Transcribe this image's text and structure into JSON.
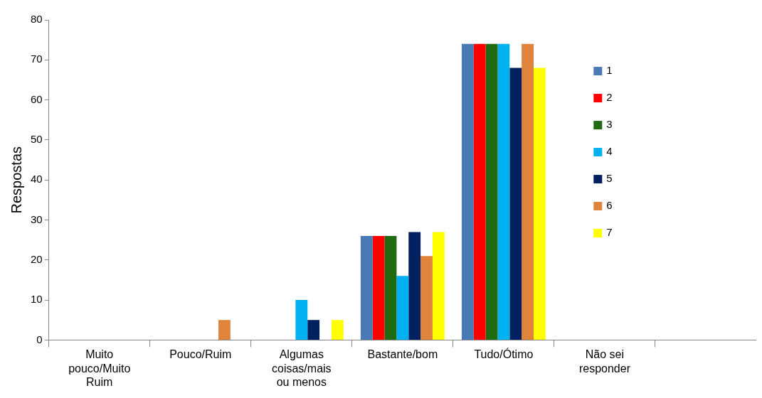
{
  "chart_data": {
    "type": "bar",
    "ylabel": "Respostas",
    "categories": [
      "Muito pouco/Muito Ruim",
      "Pouco/Ruim",
      "Algumas coisas/mais ou menos",
      "Bastante/bom",
      "Tudo/Ótimo",
      "Não sei responder",
      null
    ],
    "series": [
      {
        "name": "1",
        "color": "#4a7ab5",
        "values": [
          0,
          0,
          0,
          26,
          74,
          0,
          null
        ]
      },
      {
        "name": "2",
        "color": "#ff0000",
        "values": [
          0,
          0,
          0,
          26,
          74,
          0,
          null
        ]
      },
      {
        "name": "3",
        "color": "#1e6b12",
        "values": [
          0,
          0,
          0,
          26,
          74,
          0,
          null
        ]
      },
      {
        "name": "4",
        "color": "#00b0f0",
        "values": [
          0,
          0,
          10,
          16,
          74,
          0,
          null
        ]
      },
      {
        "name": "5",
        "color": "#002060",
        "values": [
          0,
          0,
          5,
          27,
          68,
          0,
          null
        ]
      },
      {
        "name": "6",
        "color": "#e0843c",
        "values": [
          0,
          5,
          0,
          21,
          74,
          0,
          null
        ]
      },
      {
        "name": "7",
        "color": "#ffff00",
        "values": [
          0,
          0,
          5,
          27,
          68,
          0,
          null
        ]
      }
    ],
    "ylim": [
      0,
      80
    ],
    "yticks": [
      0,
      10,
      20,
      30,
      40,
      50,
      60,
      70,
      80
    ],
    "grid": false,
    "legend": "right"
  }
}
